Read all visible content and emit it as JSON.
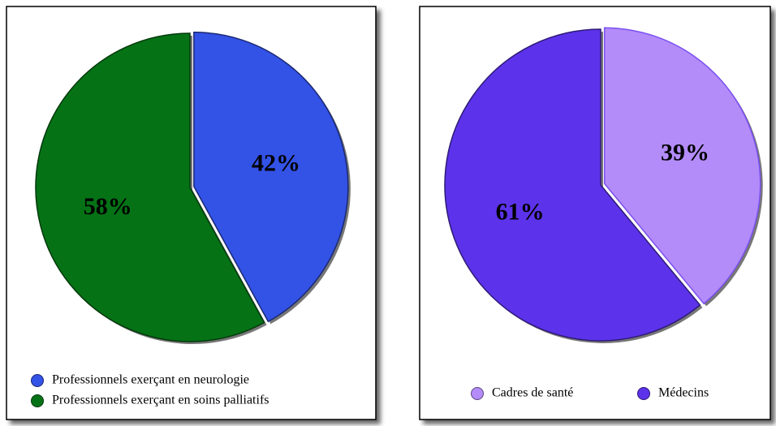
{
  "chart_data": [
    {
      "type": "pie",
      "categories": [
        "Professionnels exerçant en neurologie",
        "Professionnels exerçant en soins palliatifs"
      ],
      "values": [
        42,
        58
      ],
      "value_labels": [
        "42%",
        "58%"
      ],
      "colors": [
        "#3352e6",
        "#057216"
      ],
      "legend": "bottom"
    },
    {
      "type": "pie",
      "categories": [
        "Cadres de santé",
        "Médecins"
      ],
      "values": [
        39,
        61
      ],
      "value_labels": [
        "39%",
        "61%"
      ],
      "colors": [
        "#b38cf9",
        "#5c33ea"
      ],
      "legend": "bottom"
    }
  ]
}
